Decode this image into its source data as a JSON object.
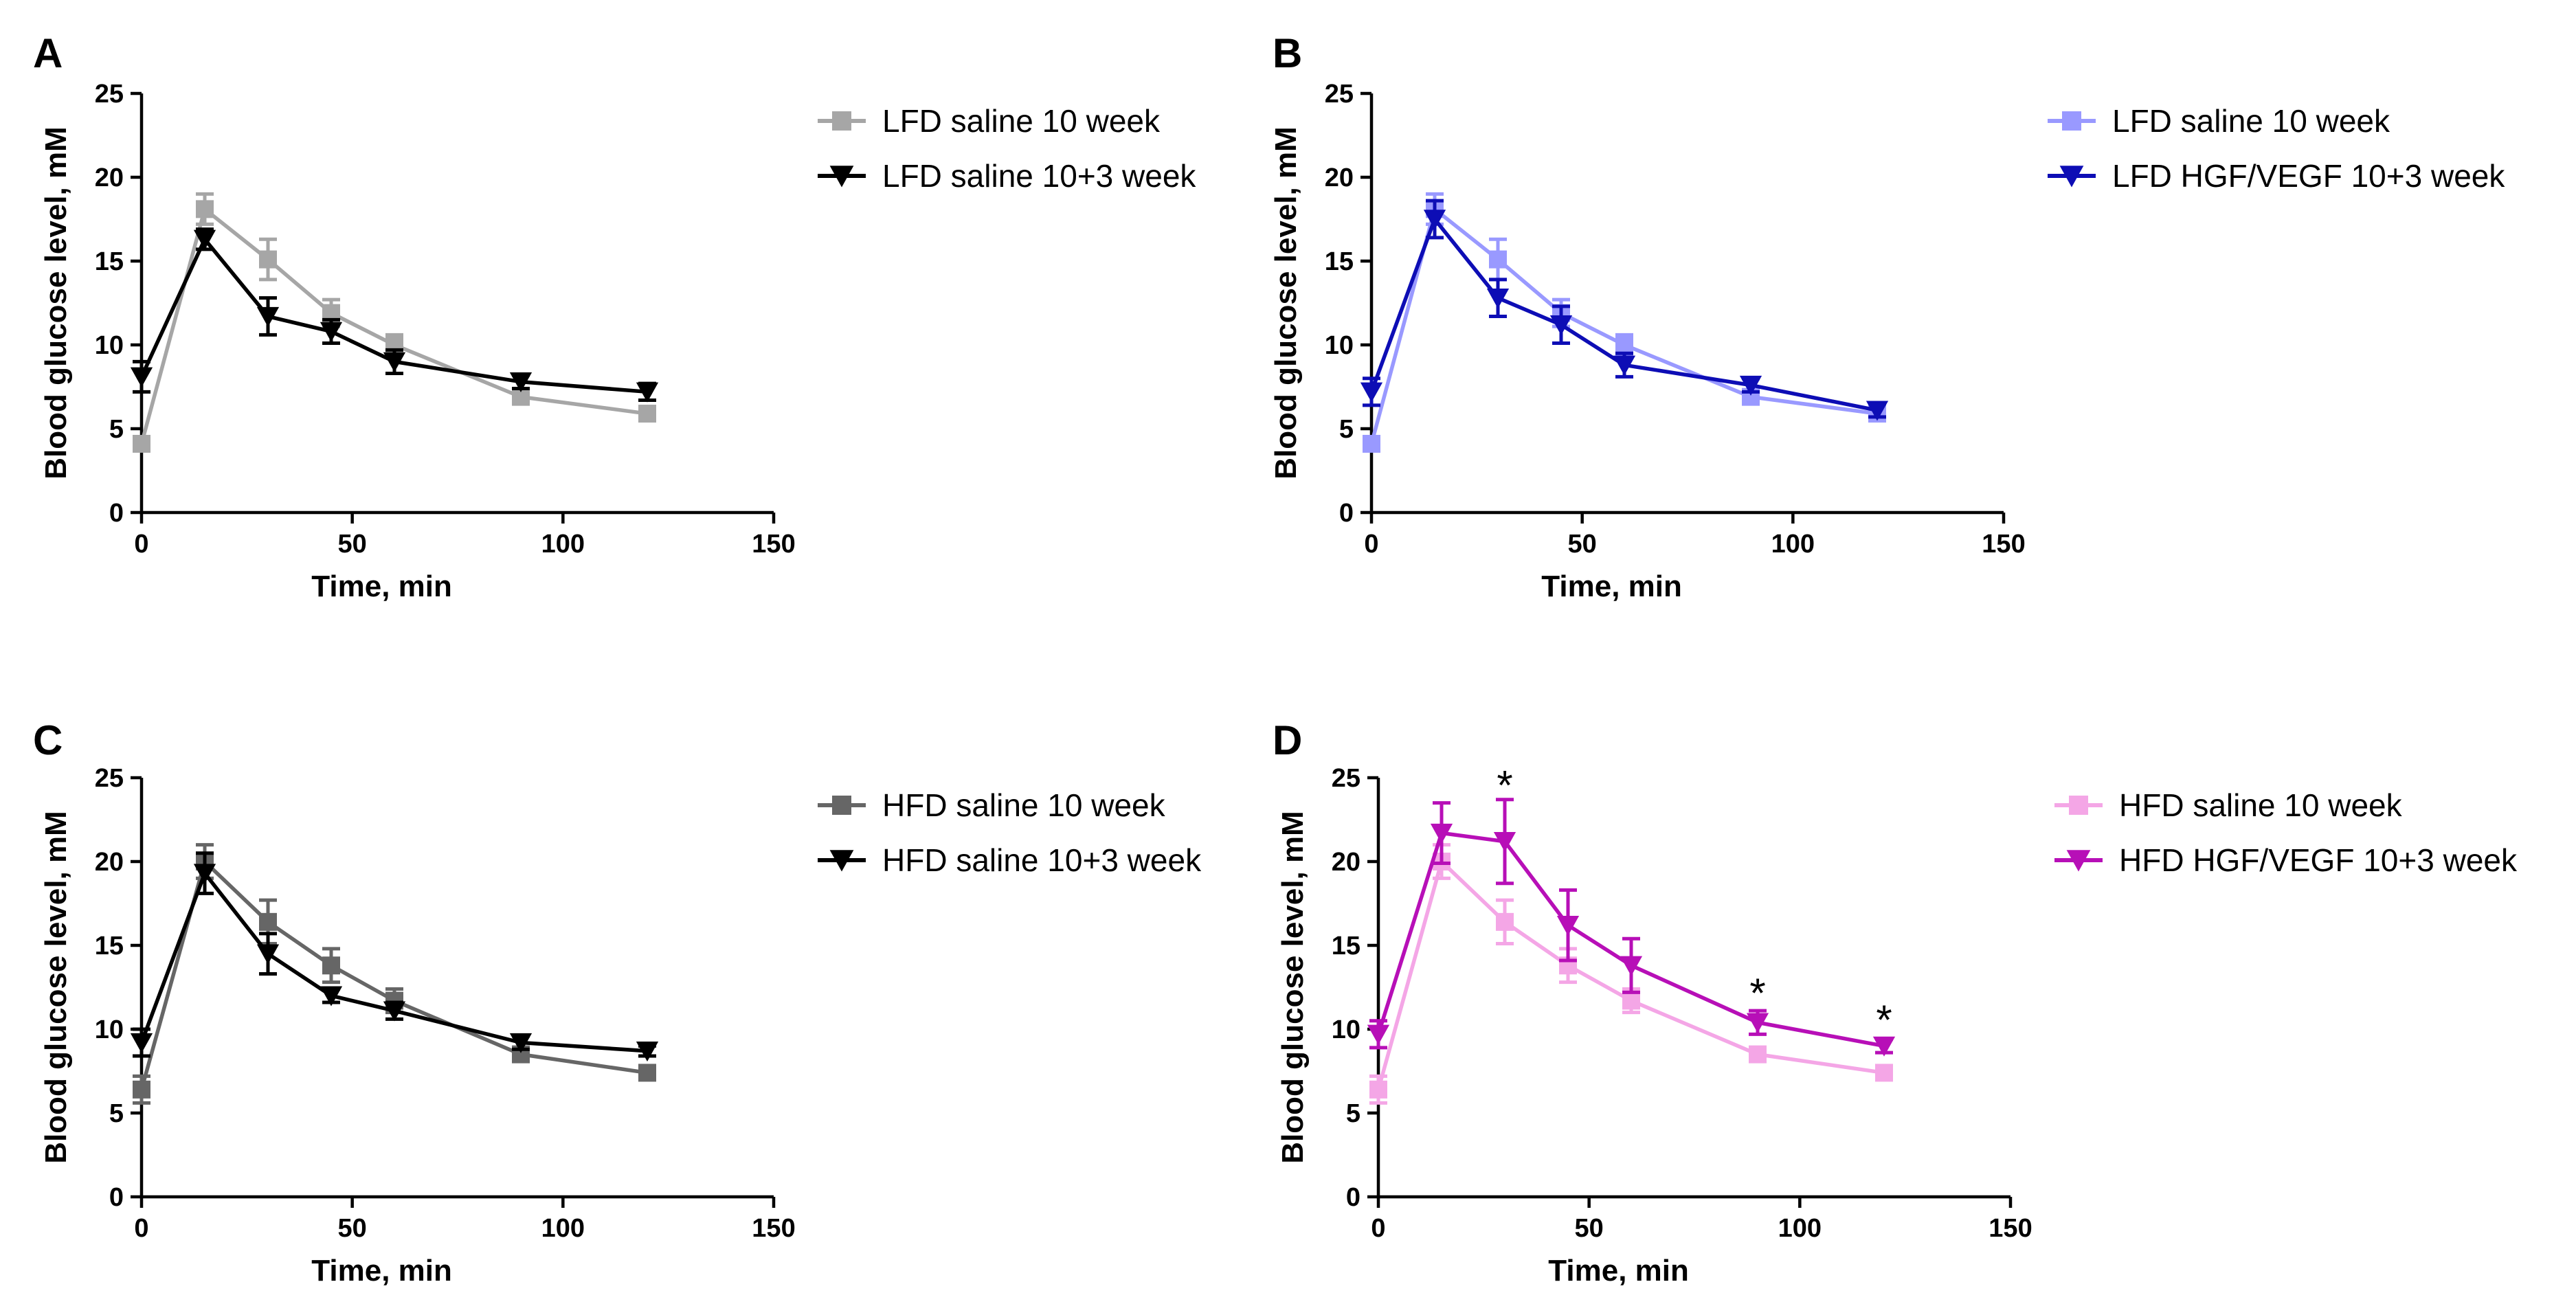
{
  "chart_data": [
    {
      "panel": "A",
      "type": "line",
      "xlabel": "Time, min",
      "ylabel": "Blood glucose level, mM",
      "xlim": [
        0,
        150
      ],
      "ylim": [
        0,
        25
      ],
      "xticks": [
        "0",
        "50",
        "100",
        "150"
      ],
      "yticks": [
        "0",
        "5",
        "10",
        "15",
        "20",
        "25"
      ],
      "legend_position": "right",
      "annotations": [],
      "series": [
        {
          "name": "LFD saline 10 week",
          "color": "#a6a6a6",
          "marker": "square",
          "x": [
            0,
            15,
            30,
            45,
            60,
            90,
            120
          ],
          "y": [
            4.1,
            18.1,
            15.1,
            11.9,
            10.0,
            6.9,
            5.9
          ],
          "err": [
            0.4,
            0.9,
            1.2,
            0.8,
            0.6,
            0.3,
            0.4
          ]
        },
        {
          "name": "LFD saline 10+3 week",
          "color": "#000000",
          "marker": "triangle-down",
          "x": [
            0,
            15,
            30,
            45,
            60,
            90,
            120
          ],
          "y": [
            8.1,
            16.3,
            11.7,
            10.8,
            9.0,
            7.8,
            7.2
          ],
          "err": [
            0.9,
            0.6,
            1.1,
            0.7,
            0.7,
            0.4,
            0.5
          ]
        }
      ]
    },
    {
      "panel": "B",
      "type": "line",
      "xlabel": "Time, min",
      "ylabel": "Blood glucose level, mM",
      "xlim": [
        0,
        150
      ],
      "ylim": [
        0,
        25
      ],
      "xticks": [
        "0",
        "50",
        "100",
        "150"
      ],
      "yticks": [
        "0",
        "5",
        "10",
        "15",
        "20",
        "25"
      ],
      "legend_position": "right",
      "annotations": [],
      "series": [
        {
          "name": "LFD saline 10 week",
          "color": "#9999ff",
          "marker": "square",
          "x": [
            0,
            15,
            30,
            45,
            60,
            90,
            120
          ],
          "y": [
            4.1,
            18.1,
            15.1,
            11.9,
            10.0,
            6.9,
            5.9
          ],
          "err": [
            0.4,
            0.9,
            1.2,
            0.8,
            0.6,
            0.3,
            0.4
          ]
        },
        {
          "name": "LFD HGF/VEGF 10+3 week",
          "color": "#0d0db5",
          "marker": "triangle-down",
          "x": [
            0,
            15,
            30,
            45,
            60,
            90,
            120
          ],
          "y": [
            7.2,
            17.5,
            12.8,
            11.2,
            8.8,
            7.6,
            6.1
          ],
          "err": [
            0.8,
            1.1,
            1.1,
            1.1,
            0.7,
            0.4,
            0.4
          ]
        }
      ]
    },
    {
      "panel": "C",
      "type": "line",
      "xlabel": "Time, min",
      "ylabel": "Blood glucose level, mM",
      "xlim": [
        0,
        150
      ],
      "ylim": [
        0,
        25
      ],
      "xticks": [
        "0",
        "50",
        "100",
        "150"
      ],
      "yticks": [
        "0",
        "5",
        "10",
        "15",
        "20",
        "25"
      ],
      "legend_position": "right",
      "annotations": [],
      "series": [
        {
          "name": "HFD saline 10 week",
          "color": "#666666",
          "marker": "square",
          "x": [
            0,
            15,
            30,
            45,
            60,
            90,
            120
          ],
          "y": [
            6.4,
            20.0,
            16.4,
            13.8,
            11.7,
            8.5,
            7.4
          ],
          "err": [
            0.8,
            1.0,
            1.3,
            1.0,
            0.7,
            0.3,
            0.3
          ]
        },
        {
          "name": "HFD saline 10+3 week",
          "color": "#000000",
          "marker": "triangle-down",
          "x": [
            0,
            15,
            30,
            45,
            60,
            90,
            120
          ],
          "y": [
            9.2,
            19.3,
            14.5,
            12.0,
            11.1,
            9.2,
            8.7
          ],
          "err": [
            0.8,
            1.2,
            1.2,
            0.4,
            0.5,
            0.4,
            0.3
          ]
        }
      ]
    },
    {
      "panel": "D",
      "type": "line",
      "xlabel": "Time, min",
      "ylabel": "Blood glucose level, mM",
      "xlim": [
        0,
        150
      ],
      "ylim": [
        0,
        25
      ],
      "xticks": [
        "0",
        "50",
        "100",
        "150"
      ],
      "yticks": [
        "0",
        "5",
        "10",
        "15",
        "20",
        "25"
      ],
      "legend_position": "right",
      "annotations": [
        {
          "text": "*",
          "x": 30,
          "y": 24.7
        },
        {
          "text": "*",
          "x": 90,
          "y": 12.3
        },
        {
          "text": "*",
          "x": 120,
          "y": 10.7
        }
      ],
      "series": [
        {
          "name": "HFD saline 10 week",
          "color": "#f4a6e6",
          "marker": "square",
          "x": [
            0,
            15,
            30,
            45,
            60,
            90,
            120
          ],
          "y": [
            6.4,
            20.0,
            16.4,
            13.8,
            11.7,
            8.5,
            7.4
          ],
          "err": [
            0.8,
            1.0,
            1.3,
            1.0,
            0.7,
            0.3,
            0.3
          ]
        },
        {
          "name": "HFD HGF/VEGF 10+3 week",
          "color": "#b70fb7",
          "marker": "triangle-down",
          "x": [
            0,
            15,
            30,
            45,
            60,
            90,
            120
          ],
          "y": [
            9.7,
            21.7,
            21.2,
            16.2,
            13.8,
            10.4,
            9.0
          ],
          "err": [
            0.8,
            1.8,
            2.5,
            2.1,
            1.6,
            0.7,
            0.4
          ]
        }
      ]
    }
  ]
}
